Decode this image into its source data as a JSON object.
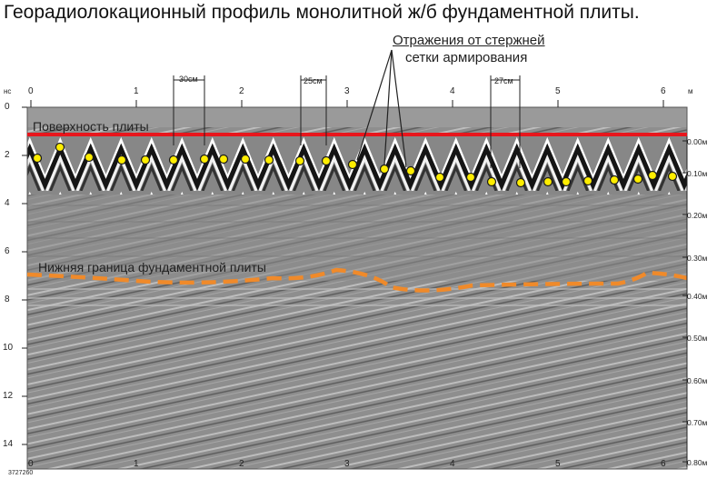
{
  "title": "Георадиолокационный профиль монолитной ж/б фундаментной плиты.",
  "annotation": {
    "line1": "Отражения от стержней",
    "line2": "сетки армирования"
  },
  "surface_label": "Поверхность плиты",
  "bottom_label": "Нижняя граница фундаментной плиты",
  "spacing_labels": [
    "30см",
    "25см",
    "27см"
  ],
  "time_unit": "нс",
  "distance_unit": "м",
  "scan_id": "3727260",
  "x_ticks": [
    "0",
    "1",
    "2",
    "3",
    "4",
    "5",
    "6"
  ],
  "y_ticks": [
    "0",
    "2",
    "4",
    "6",
    "8",
    "10",
    "12",
    "14"
  ],
  "depth_ticks": [
    "0.00м",
    "0.10м",
    "0.20м",
    "0.30м",
    "0.40м",
    "0.50м",
    "0.60м",
    "0.70м",
    "0.80м"
  ],
  "colors": {
    "surface": "#e8161c",
    "boundary": "#f08a2a",
    "marker": "#ffee00",
    "radar_bg": "#8c8c8c"
  }
}
